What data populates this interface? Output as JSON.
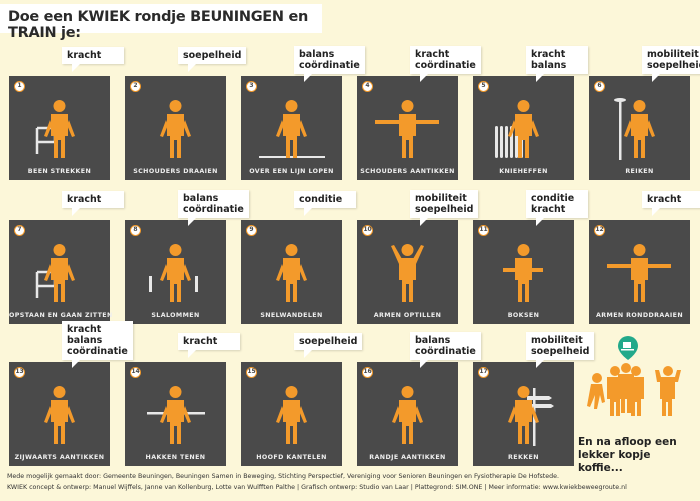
{
  "title": "Doe een KWIEK rondje BEUNINGEN en TRAIN je:",
  "colors": {
    "background": "#fcf7d9",
    "card": "#4a4a4a",
    "figure": "#f39a2b",
    "coffee_pin": "#22a98a"
  },
  "exercises": [
    {
      "num": "1",
      "label": "BEEN STREKKEN",
      "tags": [
        "kracht"
      ],
      "icon": "person-sitting-leg-extend-icon"
    },
    {
      "num": "2",
      "label": "SCHOUDERS DRAAIEN",
      "tags": [
        "soepelheid"
      ],
      "icon": "person-shoulder-rotate-icon"
    },
    {
      "num": "3",
      "label": "OVER EEN LIJN LOPEN",
      "tags": [
        "balans",
        "coördinatie"
      ],
      "icon": "person-walking-line-icon"
    },
    {
      "num": "4",
      "label": "SCHOUDERS AANTIKKEN",
      "tags": [
        "kracht",
        "coördinatie"
      ],
      "icon": "person-arms-out-icon"
    },
    {
      "num": "5",
      "label": "KNIEHEFFEN",
      "tags": [
        "kracht",
        "balans"
      ],
      "icon": "person-knee-lift-icon"
    },
    {
      "num": "6",
      "label": "REIKEN",
      "tags": [
        "mobiliteit",
        "soepelheid"
      ],
      "icon": "person-reaching-lamp-icon"
    },
    {
      "num": "7",
      "label": "OPSTAAN EN GAAN ZITTEN",
      "tags": [
        "kracht"
      ],
      "icon": "person-sit-stand-icon"
    },
    {
      "num": "8",
      "label": "SLALOMMEN",
      "tags": [
        "balans",
        "coördinatie"
      ],
      "icon": "person-slalom-icon"
    },
    {
      "num": "9",
      "label": "SNELWANDELEN",
      "tags": [
        "conditie"
      ],
      "icon": "person-fast-walk-icon"
    },
    {
      "num": "10",
      "label": "ARMEN OPTILLEN",
      "tags": [
        "mobiliteit",
        "soepelheid"
      ],
      "icon": "person-arms-up-icon"
    },
    {
      "num": "11",
      "label": "BOKSEN",
      "tags": [
        "conditie",
        "kracht"
      ],
      "icon": "person-boxing-icon"
    },
    {
      "num": "12",
      "label": "ARMEN RONDDRAAIEN",
      "tags": [
        "kracht"
      ],
      "icon": "person-arm-circles-icon"
    },
    {
      "num": "13",
      "label": "ZIJWAARTS AANTIKKEN",
      "tags": [
        "kracht",
        "balans",
        "coördinatie"
      ],
      "icon": "person-side-tap-icon"
    },
    {
      "num": "14",
      "label": "HAKKEN TENEN",
      "tags": [
        "kracht"
      ],
      "icon": "person-heel-toe-icon"
    },
    {
      "num": "15",
      "label": "HOOFD KANTELEN",
      "tags": [
        "soepelheid"
      ],
      "icon": "person-head-tilt-icon"
    },
    {
      "num": "16",
      "label": "RANDJE AANTIKKEN",
      "tags": [
        "balans",
        "coördinatie"
      ],
      "icon": "person-step-tap-icon"
    },
    {
      "num": "17",
      "label": "REKKEN",
      "tags": [
        "mobiliteit",
        "soepelheid"
      ],
      "icon": "person-stretch-signpost-icon"
    }
  ],
  "closing": {
    "line1": "En na afloop een",
    "line2": "lekker kopje koffie...",
    "icon": "coffee-cup-icon"
  },
  "footer": {
    "line1": "Mede mogelijk gemaakt door: Gemeente Beuningen, Beuningen Samen in Beweging, Stichting Perspectief, Vereniging voor Senioren Beuningen en Fysiotherapie De Hofstede.",
    "line2": "KWIEK concept & ontwerp: Manuel Wijffels, Janne van Kollenburg, Lotte van Wulfften Palthe  |  Grafisch ontwerp: Studio van Laar  |  Plattegrond: SIM.ONE  |  Meer informatie: www.kwiekbeweegroute.nl"
  }
}
